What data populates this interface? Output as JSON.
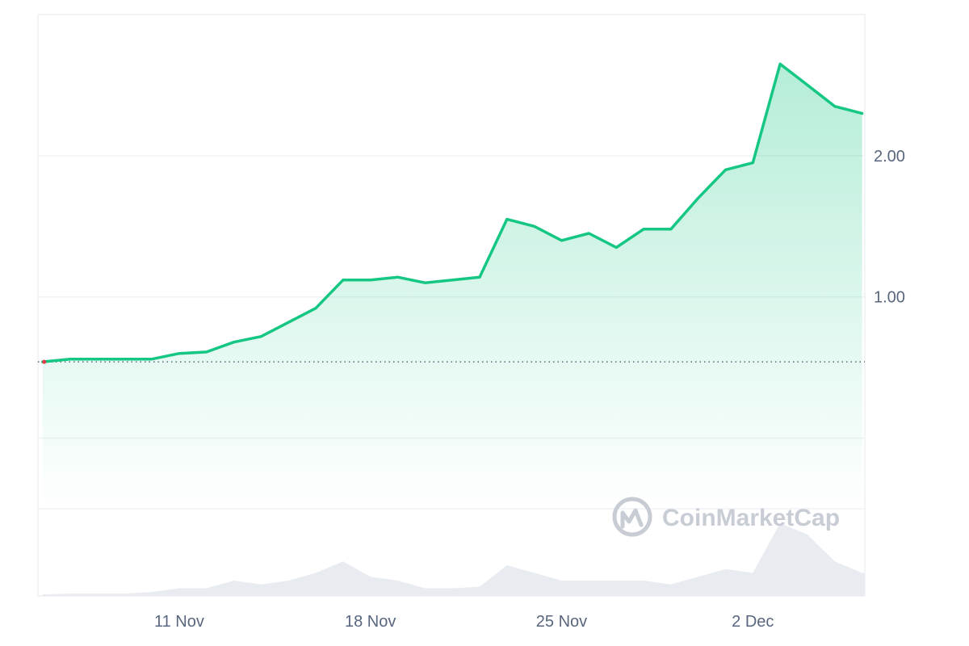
{
  "watermark": {
    "text": "CoinMarketCap"
  },
  "colors": {
    "line": "#16c784",
    "line_start": "#ea3943",
    "area_top": "#16c784",
    "grid": "#eff2f5",
    "baseline": "#58667e",
    "volume": "#e8ebf0",
    "text": "#58667e"
  },
  "chart_data": {
    "type": "area",
    "title": "",
    "xlabel": "",
    "ylabel": "",
    "x_ticks": [
      "11 Nov",
      "18 Nov",
      "25 Nov",
      "2 Dec"
    ],
    "y_ticks": [
      "1.00",
      "2.00"
    ],
    "y_tick_values": [
      1.0,
      2.0
    ],
    "ylim": [
      -0.5,
      3.0
    ],
    "baseline_value": 0.54,
    "grid": true,
    "price_series": {
      "name": "",
      "x": [
        "2024-11-06",
        "2024-11-07",
        "2024-11-08",
        "2024-11-09",
        "2024-11-10",
        "2024-11-11",
        "2024-11-12",
        "2024-11-13",
        "2024-11-14",
        "2024-11-15",
        "2024-11-16",
        "2024-11-17",
        "2024-11-18",
        "2024-11-19",
        "2024-11-20",
        "2024-11-21",
        "2024-11-22",
        "2024-11-23",
        "2024-11-24",
        "2024-11-25",
        "2024-11-26",
        "2024-11-27",
        "2024-11-28",
        "2024-11-29",
        "2024-11-30",
        "2024-12-01",
        "2024-12-02",
        "2024-12-03",
        "2024-12-04",
        "2024-12-05",
        "2024-12-06"
      ],
      "y": [
        0.54,
        0.56,
        0.56,
        0.56,
        0.56,
        0.6,
        0.61,
        0.68,
        0.72,
        0.82,
        0.92,
        1.12,
        1.12,
        1.14,
        1.1,
        1.12,
        1.14,
        1.55,
        1.5,
        1.4,
        1.45,
        1.35,
        1.48,
        1.48,
        1.7,
        1.9,
        1.95,
        2.65,
        2.5,
        2.35,
        2.3
      ]
    },
    "volume_series": {
      "name": "",
      "x": [
        "2024-11-06",
        "2024-11-07",
        "2024-11-08",
        "2024-11-09",
        "2024-11-10",
        "2024-11-11",
        "2024-11-12",
        "2024-11-13",
        "2024-11-14",
        "2024-11-15",
        "2024-11-16",
        "2024-11-17",
        "2024-11-18",
        "2024-11-19",
        "2024-11-20",
        "2024-11-21",
        "2024-11-22",
        "2024-11-23",
        "2024-11-24",
        "2024-11-25",
        "2024-11-26",
        "2024-11-27",
        "2024-11-28",
        "2024-11-29",
        "2024-11-30",
        "2024-12-01",
        "2024-12-02",
        "2024-12-03",
        "2024-12-04",
        "2024-12-05",
        "2024-12-06"
      ],
      "y": [
        0.02,
        0.03,
        0.03,
        0.03,
        0.05,
        0.1,
        0.1,
        0.2,
        0.15,
        0.2,
        0.3,
        0.45,
        0.25,
        0.2,
        0.1,
        0.1,
        0.12,
        0.4,
        0.3,
        0.2,
        0.2,
        0.2,
        0.2,
        0.15,
        0.25,
        0.35,
        0.3,
        0.95,
        0.8,
        0.45,
        0.3
      ]
    }
  }
}
